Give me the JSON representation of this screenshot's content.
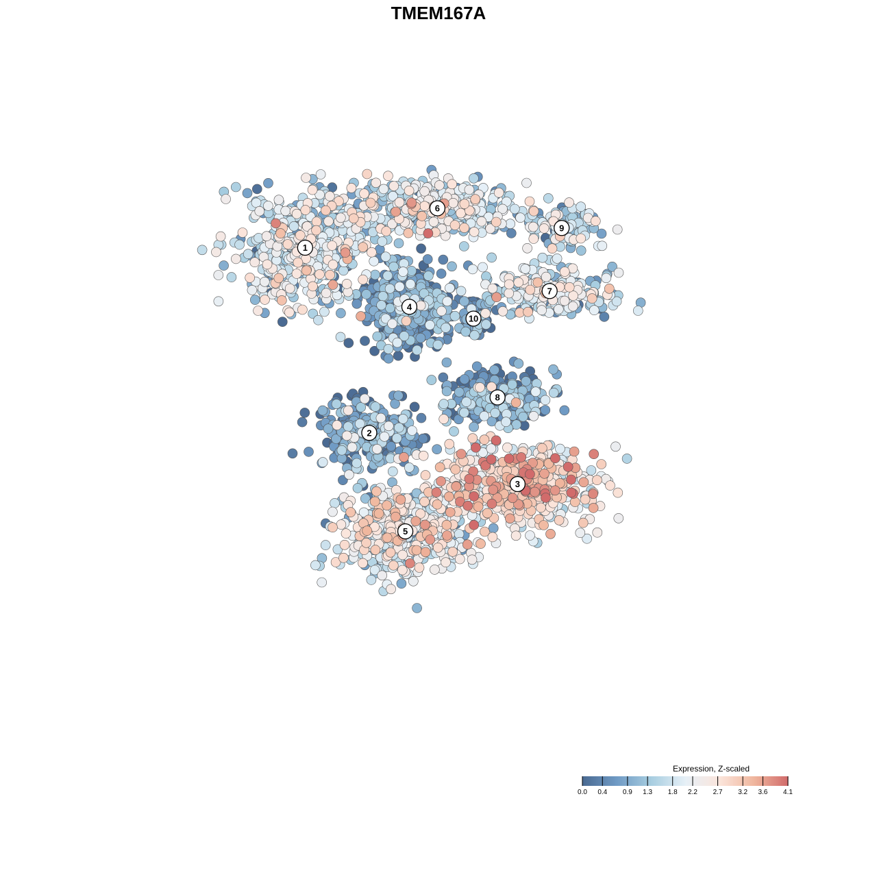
{
  "chart_data": {
    "type": "scatter",
    "title": "TMEM167A",
    "xlabel": "",
    "ylabel": "",
    "grid": false,
    "axes_visible": false,
    "legend": {
      "title": "Expression, Z-scaled",
      "placement": "bottom-right",
      "ticks": [
        0.0,
        0.4,
        0.9,
        1.3,
        1.8,
        2.2,
        2.7,
        3.2,
        3.6,
        4.1
      ],
      "tick_labels": [
        "0.0",
        "0.4",
        "0.9",
        "1.3",
        "1.8",
        "2.2",
        "2.7",
        "3.2",
        "3.6",
        "4.1"
      ],
      "range": [
        0.0,
        4.1
      ],
      "colors": [
        "#4a6a92",
        "#6f9ac4",
        "#a7cde0",
        "#e6f0f7",
        "#fbe5dc",
        "#f0b79e",
        "#d16b6b"
      ]
    },
    "clusters": [
      {
        "label": "1",
        "x": -14.5,
        "y": 11.0,
        "mean_expression": 1.7
      },
      {
        "label": "2",
        "x": -6.5,
        "y": -12.5,
        "mean_expression": 0.7
      },
      {
        "label": "3",
        "x": 12.0,
        "y": -19.0,
        "mean_expression": 2.6
      },
      {
        "label": "4",
        "x": -1.5,
        "y": 3.5,
        "mean_expression": 0.5
      },
      {
        "label": "5",
        "x": -2.0,
        "y": -25.0,
        "mean_expression": 2.0
      },
      {
        "label": "6",
        "x": 2.0,
        "y": 16.0,
        "mean_expression": 1.8
      },
      {
        "label": "7",
        "x": 16.0,
        "y": 5.5,
        "mean_expression": 1.6
      },
      {
        "label": "8",
        "x": 9.5,
        "y": -8.0,
        "mean_expression": 0.6
      },
      {
        "label": "9",
        "x": 17.5,
        "y": 13.5,
        "mean_expression": 1.5
      },
      {
        "label": "10",
        "x": 6.5,
        "y": 2.0,
        "mean_expression": 0.4
      }
    ]
  }
}
